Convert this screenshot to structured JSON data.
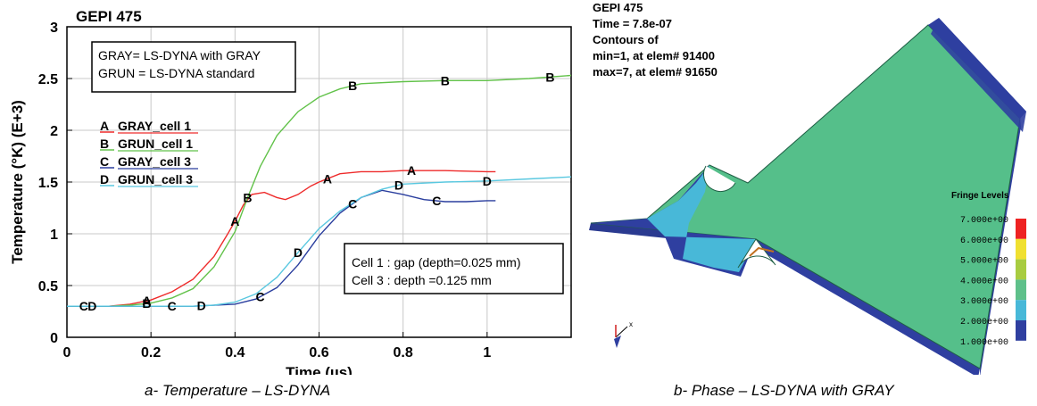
{
  "left_panel": {
    "caption": "a- Temperature – LS-DYNA",
    "title": "GEPI 475",
    "box1": [
      "GRAY= LS-DYNA with GRAY",
      "GRUN = LS-DYNA standard"
    ],
    "box2": [
      "Cell 1 : gap (depth=0.025 mm)",
      "Cell 3 : depth =0.125 mm"
    ]
  },
  "right_panel": {
    "caption": "b- Phase – LS-DYNA with GRAY",
    "header_lines": [
      "GEPI 475",
      "Time =     7.8e-07",
      "Contours of",
      " min=1, at elem# 91400",
      " max=7, at elem# 91650"
    ],
    "fringe_title": "Fringe Levels",
    "fringe_levels": [
      "7.000e+00",
      "6.000e+00",
      "5.000e+00",
      "4.000e+00",
      "3.000e+00",
      "2.000e+00",
      "1.000e+00"
    ],
    "fringe_colors": [
      "#ee2222",
      "#f0e030",
      "#a8cc40",
      "#5ec08a",
      "#48b8d8",
      "#2f3fa0"
    ],
    "colors": {
      "body": "#55bf8a",
      "dark": "#2f3fa0",
      "cyan": "#48b8d8",
      "edge": "#1f5f45"
    }
  },
  "chart_data": {
    "type": "line",
    "title": "GEPI 475",
    "xlabel": "Time (µs)",
    "ylabel": "Temperature (°K) (E+3)",
    "xlim": [
      0,
      1.2
    ],
    "ylim": [
      0,
      3
    ],
    "xticks": [
      "0",
      "0.2",
      "0.4",
      "0.6",
      "0.8",
      "1"
    ],
    "yticks": [
      "0",
      "0.5",
      "1",
      "1.5",
      "2",
      "2.5",
      "3"
    ],
    "grid": true,
    "legend_position": "upper-left",
    "series": [
      {
        "name": "GRAY_cell 1",
        "marker": "A",
        "color": "#ee2a2a",
        "x": [
          0,
          0.1,
          0.15,
          0.2,
          0.25,
          0.3,
          0.35,
          0.38,
          0.4,
          0.42,
          0.44,
          0.47,
          0.5,
          0.52,
          0.55,
          0.58,
          0.6,
          0.65,
          0.7,
          0.75,
          0.8,
          0.9,
          1.0,
          1.02
        ],
        "y": [
          0.3,
          0.3,
          0.32,
          0.36,
          0.44,
          0.56,
          0.78,
          0.98,
          1.12,
          1.28,
          1.38,
          1.4,
          1.35,
          1.33,
          1.38,
          1.46,
          1.5,
          1.58,
          1.6,
          1.6,
          1.61,
          1.61,
          1.6,
          1.6
        ],
        "label_x": [
          0.19,
          0.4,
          0.62,
          0.82
        ]
      },
      {
        "name": "GRUN_cell 1",
        "marker": "B",
        "color": "#62c24a",
        "x": [
          0,
          0.1,
          0.15,
          0.2,
          0.25,
          0.3,
          0.35,
          0.4,
          0.43,
          0.46,
          0.5,
          0.55,
          0.6,
          0.65,
          0.7,
          0.8,
          0.9,
          1.0,
          1.1,
          1.2
        ],
        "y": [
          0.3,
          0.3,
          0.31,
          0.33,
          0.38,
          0.47,
          0.68,
          1.02,
          1.35,
          1.65,
          1.95,
          2.18,
          2.32,
          2.4,
          2.45,
          2.47,
          2.48,
          2.48,
          2.5,
          2.53
        ],
        "label_x": [
          0.19,
          0.43,
          0.68,
          0.9,
          1.15
        ]
      },
      {
        "name": "GRAY_cell 3",
        "marker": "C",
        "color": "#2a3e9e",
        "x": [
          0,
          0.1,
          0.2,
          0.3,
          0.4,
          0.45,
          0.5,
          0.55,
          0.6,
          0.65,
          0.7,
          0.75,
          0.8,
          0.85,
          0.9,
          0.95,
          1.0,
          1.02
        ],
        "y": [
          0.3,
          0.3,
          0.3,
          0.3,
          0.32,
          0.37,
          0.48,
          0.7,
          0.98,
          1.2,
          1.35,
          1.42,
          1.38,
          1.33,
          1.31,
          1.31,
          1.32,
          1.32
        ],
        "label_x": [
          0.04,
          0.25,
          0.46,
          0.68,
          0.88
        ]
      },
      {
        "name": "GRUN_cell 3",
        "marker": "D",
        "color": "#5ac8e0",
        "x": [
          0,
          0.1,
          0.2,
          0.3,
          0.35,
          0.4,
          0.45,
          0.5,
          0.55,
          0.6,
          0.65,
          0.7,
          0.75,
          0.8,
          0.9,
          1.0,
          1.1,
          1.2
        ],
        "y": [
          0.3,
          0.3,
          0.3,
          0.3,
          0.31,
          0.34,
          0.42,
          0.58,
          0.82,
          1.05,
          1.22,
          1.35,
          1.43,
          1.48,
          1.5,
          1.51,
          1.53,
          1.55
        ],
        "label_x": [
          0.06,
          0.32,
          0.55,
          0.79,
          1.0
        ]
      }
    ]
  }
}
